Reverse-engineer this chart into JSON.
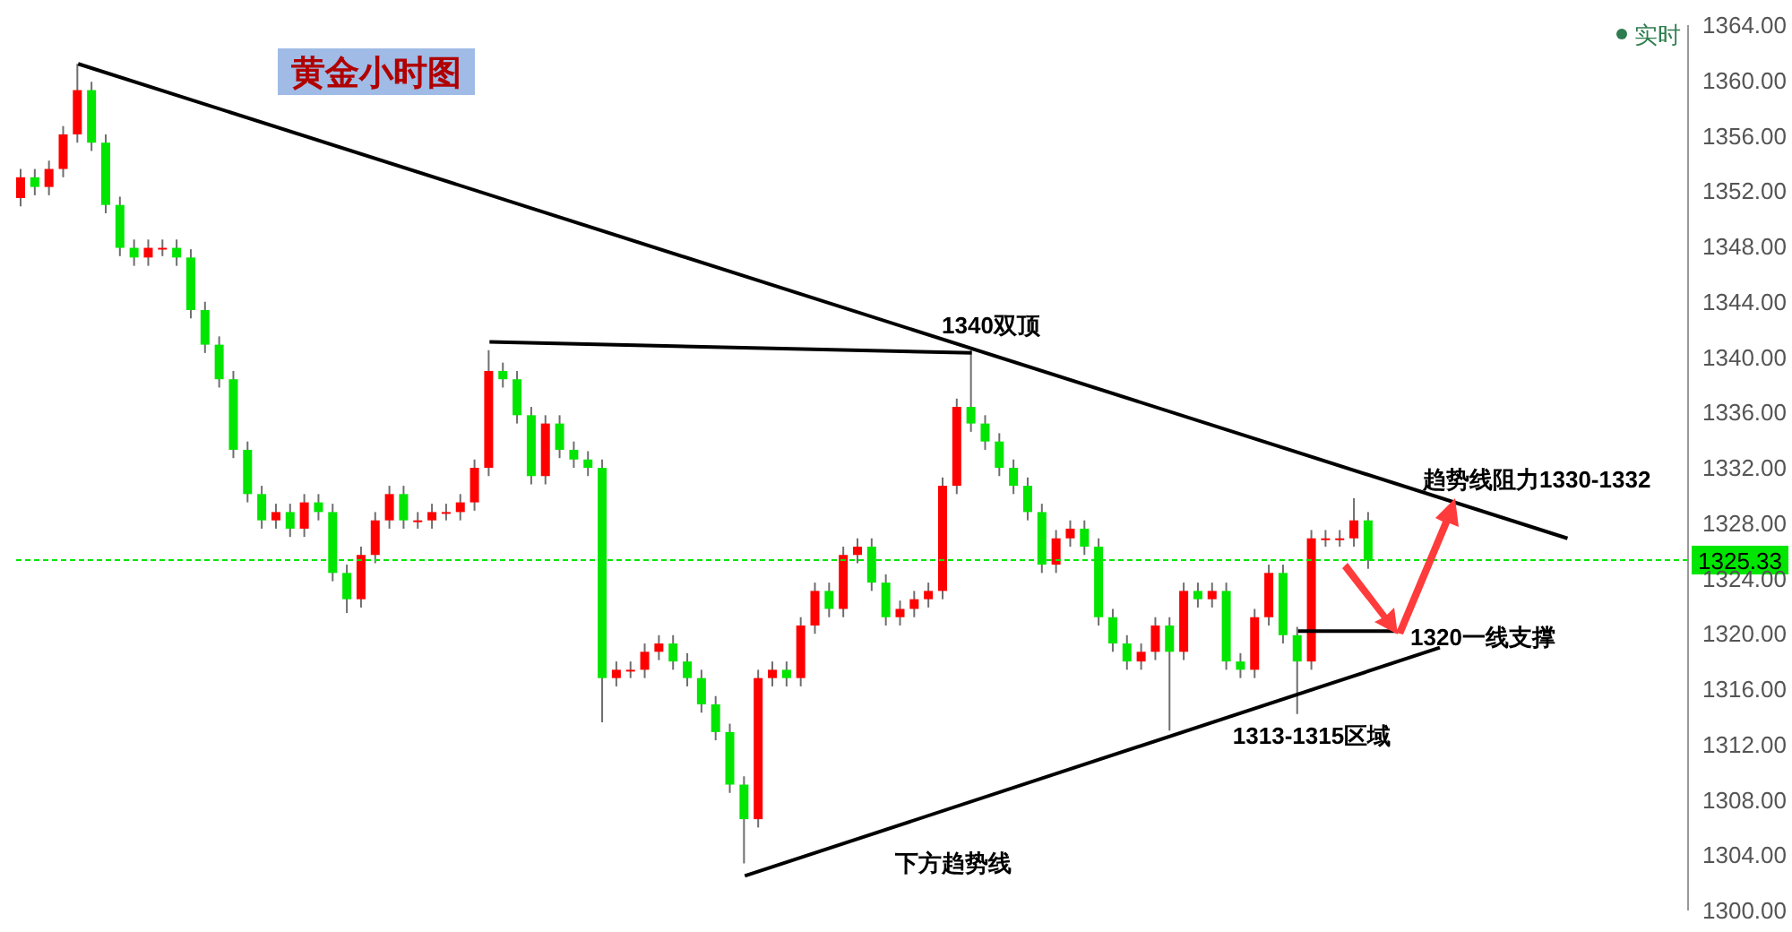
{
  "chart_data": {
    "type": "candlestick",
    "title": "黄金小时图",
    "categories": [
      null,
      null,
      null,
      null,
      null,
      null,
      null,
      null,
      null,
      null,
      null,
      null,
      null,
      null,
      null,
      null,
      null,
      null,
      null,
      null,
      null,
      null,
      null,
      null,
      null,
      null,
      null,
      null,
      null,
      null,
      null,
      null,
      null,
      null,
      null,
      null,
      null,
      null,
      null,
      null,
      null,
      null,
      null,
      null,
      null,
      null,
      null,
      null,
      null,
      null,
      null,
      null,
      null,
      null,
      null,
      null,
      null,
      null,
      null,
      null,
      null,
      null,
      null,
      null,
      null,
      null,
      null,
      null,
      null,
      null,
      null,
      null,
      null,
      null,
      null,
      null,
      null,
      null,
      null,
      null,
      null,
      null,
      null,
      null,
      null,
      null,
      null,
      null,
      null,
      null,
      null,
      null,
      null,
      null,
      null,
      null,
      null,
      null,
      null,
      null,
      null,
      null,
      null,
      null,
      null,
      null,
      null,
      null,
      null,
      null,
      null,
      null,
      null,
      null,
      null,
      null,
      null,
      null
    ],
    "ohlc": [
      [
        1351.5,
        1353.6,
        1350.9,
        1353.0
      ],
      [
        1353.0,
        1353.6,
        1351.7,
        1352.3
      ],
      [
        1352.3,
        1354.2,
        1351.7,
        1353.6
      ],
      [
        1353.6,
        1356.7,
        1353.0,
        1356.1
      ],
      [
        1356.1,
        1361.2,
        1355.5,
        1359.3
      ],
      [
        1359.3,
        1359.9,
        1354.9,
        1355.5
      ],
      [
        1355.5,
        1356.1,
        1350.4,
        1351.0
      ],
      [
        1351.0,
        1351.6,
        1347.3,
        1347.9
      ],
      [
        1347.9,
        1348.5,
        1346.6,
        1347.2
      ],
      [
        1347.2,
        1348.5,
        1346.6,
        1347.9
      ],
      [
        1347.9,
        1348.5,
        1347.3,
        1347.9
      ],
      [
        1347.9,
        1348.5,
        1346.6,
        1347.2
      ],
      [
        1347.2,
        1347.8,
        1342.8,
        1343.4
      ],
      [
        1343.4,
        1344.0,
        1340.3,
        1340.9
      ],
      [
        1340.9,
        1341.5,
        1337.8,
        1338.4
      ],
      [
        1338.4,
        1339.0,
        1332.7,
        1333.3
      ],
      [
        1333.3,
        1333.9,
        1329.5,
        1330.1
      ],
      [
        1330.1,
        1330.7,
        1327.6,
        1328.2
      ],
      [
        1328.2,
        1329.4,
        1327.6,
        1328.8
      ],
      [
        1328.8,
        1329.4,
        1327.0,
        1327.6
      ],
      [
        1327.6,
        1330.1,
        1327.0,
        1329.5
      ],
      [
        1329.5,
        1330.1,
        1328.2,
        1328.8
      ],
      [
        1328.8,
        1329.4,
        1323.8,
        1324.4
      ],
      [
        1324.4,
        1325.0,
        1321.5,
        1322.5
      ],
      [
        1322.5,
        1326.3,
        1321.9,
        1325.7
      ],
      [
        1325.7,
        1328.8,
        1325.1,
        1328.2
      ],
      [
        1328.2,
        1330.7,
        1327.6,
        1330.1
      ],
      [
        1330.1,
        1330.7,
        1327.6,
        1328.2
      ],
      [
        1328.2,
        1328.8,
        1327.6,
        1328.2
      ],
      [
        1328.2,
        1329.4,
        1327.6,
        1328.8
      ],
      [
        1328.8,
        1329.4,
        1328.2,
        1328.8
      ],
      [
        1328.8,
        1330.1,
        1328.2,
        1329.5
      ],
      [
        1329.5,
        1332.6,
        1328.9,
        1332.0
      ],
      [
        1332.0,
        1340.5,
        1331.4,
        1339.0
      ],
      [
        1339.0,
        1339.6,
        1337.8,
        1338.4
      ],
      [
        1338.4,
        1339.0,
        1335.2,
        1335.8
      ],
      [
        1335.8,
        1336.4,
        1330.8,
        1331.4
      ],
      [
        1331.4,
        1335.8,
        1330.8,
        1335.2
      ],
      [
        1335.2,
        1335.8,
        1332.7,
        1333.3
      ],
      [
        1333.3,
        1333.9,
        1332.0,
        1332.6
      ],
      [
        1332.6,
        1333.2,
        1331.4,
        1332.0
      ],
      [
        1332.0,
        1332.6,
        1313.6,
        1316.8
      ],
      [
        1316.8,
        1318.0,
        1316.2,
        1317.4
      ],
      [
        1317.4,
        1318.0,
        1316.8,
        1317.4
      ],
      [
        1317.4,
        1319.3,
        1316.8,
        1318.7
      ],
      [
        1318.7,
        1319.9,
        1318.1,
        1319.3
      ],
      [
        1319.3,
        1319.9,
        1317.4,
        1318.0
      ],
      [
        1318.0,
        1318.6,
        1316.2,
        1316.8
      ],
      [
        1316.8,
        1317.4,
        1314.3,
        1314.9
      ],
      [
        1314.9,
        1315.5,
        1312.3,
        1312.9
      ],
      [
        1312.9,
        1313.5,
        1308.5,
        1309.1
      ],
      [
        1309.1,
        1309.7,
        1303.4,
        1306.6
      ],
      [
        1306.6,
        1317.4,
        1306.0,
        1316.8
      ],
      [
        1316.8,
        1318.0,
        1316.2,
        1317.4
      ],
      [
        1317.4,
        1318.0,
        1316.2,
        1316.8
      ],
      [
        1316.8,
        1321.2,
        1316.2,
        1320.6
      ],
      [
        1320.6,
        1323.7,
        1320.0,
        1323.1
      ],
      [
        1323.1,
        1323.7,
        1321.2,
        1321.8
      ],
      [
        1321.8,
        1326.3,
        1321.2,
        1325.7
      ],
      [
        1325.7,
        1326.9,
        1325.1,
        1326.3
      ],
      [
        1326.3,
        1326.9,
        1323.1,
        1323.7
      ],
      [
        1323.7,
        1324.3,
        1320.6,
        1321.2
      ],
      [
        1321.2,
        1322.4,
        1320.6,
        1321.8
      ],
      [
        1321.8,
        1323.1,
        1321.2,
        1322.5
      ],
      [
        1322.5,
        1323.7,
        1321.9,
        1323.1
      ],
      [
        1323.1,
        1331.3,
        1322.5,
        1330.7
      ],
      [
        1330.7,
        1337.0,
        1330.1,
        1336.4
      ],
      [
        1336.4,
        1340.5,
        1334.6,
        1335.2
      ],
      [
        1335.2,
        1335.8,
        1333.3,
        1333.9
      ],
      [
        1333.9,
        1334.5,
        1331.4,
        1332.0
      ],
      [
        1332.0,
        1332.6,
        1330.1,
        1330.7
      ],
      [
        1330.7,
        1331.3,
        1328.2,
        1328.8
      ],
      [
        1328.8,
        1329.4,
        1324.4,
        1325.0
      ],
      [
        1325.0,
        1327.5,
        1324.4,
        1326.9
      ],
      [
        1326.9,
        1328.2,
        1326.3,
        1327.6
      ],
      [
        1327.6,
        1328.2,
        1325.7,
        1326.3
      ],
      [
        1326.3,
        1326.9,
        1320.6,
        1321.2
      ],
      [
        1321.2,
        1321.8,
        1318.7,
        1319.3
      ],
      [
        1319.3,
        1319.9,
        1317.4,
        1318.0
      ],
      [
        1318.0,
        1319.3,
        1317.4,
        1318.7
      ],
      [
        1318.7,
        1321.2,
        1318.1,
        1320.6
      ],
      [
        1320.6,
        1321.2,
        1313.0,
        1318.7
      ],
      [
        1318.7,
        1323.7,
        1318.1,
        1323.1
      ],
      [
        1323.1,
        1323.7,
        1321.9,
        1322.5
      ],
      [
        1322.5,
        1323.7,
        1321.9,
        1323.1
      ],
      [
        1323.1,
        1323.7,
        1317.4,
        1318.0
      ],
      [
        1318.0,
        1318.6,
        1316.8,
        1317.4
      ],
      [
        1317.4,
        1321.8,
        1316.8,
        1321.2
      ],
      [
        1321.2,
        1325.0,
        1320.6,
        1324.4
      ],
      [
        1324.4,
        1325.0,
        1319.3,
        1319.9
      ],
      [
        1319.9,
        1320.5,
        1314.2,
        1318.0
      ],
      [
        1318.0,
        1327.5,
        1317.4,
        1326.9
      ],
      [
        1326.9,
        1327.5,
        1326.3,
        1326.9
      ],
      [
        1326.9,
        1327.5,
        1326.3,
        1326.9
      ],
      [
        1326.9,
        1329.8,
        1326.3,
        1328.2
      ],
      [
        1328.2,
        1328.8,
        1324.7,
        1325.3
      ],
      null,
      null,
      null,
      null,
      null,
      null,
      null,
      null,
      null,
      null,
      null,
      null,
      null,
      null,
      null,
      null,
      null,
      null,
      null,
      null,
      null,
      null
    ],
    "colors": [
      "#ff0000",
      "#00e600",
      "#ff0000",
      "#ff0000",
      "#ff0000",
      "#00e600",
      "#00e600",
      "#00e600",
      "#00e600",
      "#ff0000",
      "#ff0000",
      "#00e600",
      "#00e600",
      "#00e600",
      "#00e600",
      "#00e600",
      "#00e600",
      "#00e600",
      "#ff0000",
      "#00e600",
      "#ff0000",
      "#00e600",
      "#00e600",
      "#00e600",
      "#ff0000",
      "#ff0000",
      "#ff0000",
      "#00e600",
      "#ff0000",
      "#ff0000",
      "#ff0000",
      "#ff0000",
      "#ff0000",
      "#ff0000",
      "#00e600",
      "#00e600",
      "#00e600",
      "#ff0000",
      "#00e600",
      "#00e600",
      "#00e600",
      "#00e600",
      "#ff0000",
      "#ff0000",
      "#ff0000",
      "#ff0000",
      "#00e600",
      "#00e600",
      "#00e600",
      "#00e600",
      "#00e600",
      "#00e600",
      "#ff0000",
      "#ff0000",
      "#00e600",
      "#ff0000",
      "#ff0000",
      "#00e600",
      "#ff0000",
      "#ff0000",
      "#00e600",
      "#00e600",
      "#ff0000",
      "#ff0000",
      "#ff0000",
      "#ff0000",
      "#ff0000",
      "#00e600",
      "#00e600",
      "#00e600",
      "#00e600",
      "#00e600",
      "#00e600",
      "#ff0000",
      "#ff0000",
      "#00e600",
      "#00e600",
      "#00e600",
      "#00e600",
      "#ff0000",
      "#ff0000",
      "#00e600",
      "#ff0000",
      "#00e600",
      "#ff0000",
      "#00e600",
      "#00e600",
      "#ff0000",
      "#ff0000",
      "#00e600",
      "#00e600",
      "#ff0000",
      "#ff0000",
      "#ff0000",
      "#ff0000",
      "#00e600",
      null,
      null,
      null,
      null,
      null,
      null,
      null,
      null,
      null,
      null,
      null,
      null,
      null,
      null,
      null,
      null,
      null,
      null,
      null,
      null,
      null,
      null
    ],
    "series": [
      {
        "type": "line",
        "color": "#000000",
        "values": [
          null,
          null,
          null,
          null,
          1361.2,
          null,
          null,
          null,
          null,
          null,
          null,
          null,
          null,
          null,
          null,
          null,
          null,
          null,
          null,
          null,
          null,
          null,
          null,
          null,
          null,
          null,
          null,
          null,
          null,
          null,
          null,
          null,
          null,
          null,
          null,
          null,
          null,
          null,
          null,
          null,
          null,
          null,
          null,
          null,
          null,
          null,
          null,
          null,
          null,
          null,
          null,
          null,
          null,
          null,
          null,
          null,
          null,
          null,
          null,
          null,
          null,
          null,
          null,
          null,
          null,
          null,
          null,
          null,
          null,
          null,
          null,
          null,
          null,
          null,
          null,
          null,
          null,
          null,
          null,
          null,
          null,
          null,
          null,
          null,
          null,
          null,
          null,
          null,
          null,
          null,
          null,
          null,
          null,
          null,
          null,
          null,
          null,
          null,
          null,
          null,
          null,
          null,
          null,
          null,
          null,
          null,
          null,
          null,
          null,
          1326.9,
          null,
          null,
          null,
          null,
          null,
          null,
          null,
          null
        ]
      },
      {
        "type": "line",
        "color": "#000000",
        "values": [
          null,
          null,
          null,
          null,
          null,
          null,
          null,
          null,
          null,
          null,
          null,
          null,
          null,
          null,
          null,
          null,
          null,
          null,
          null,
          null,
          null,
          null,
          null,
          null,
          null,
          null,
          null,
          null,
          null,
          null,
          null,
          null,
          null,
          1341.1,
          null,
          null,
          null,
          null,
          null,
          null,
          null,
          null,
          null,
          null,
          null,
          null,
          null,
          null,
          null,
          null,
          null,
          null,
          null,
          null,
          null,
          null,
          null,
          null,
          null,
          null,
          null,
          null,
          null,
          null,
          null,
          null,
          null,
          1340.3,
          null,
          null,
          null,
          null,
          null,
          null,
          null,
          null,
          null,
          null,
          null,
          null,
          null,
          null,
          null,
          null,
          null,
          null,
          null,
          null,
          null,
          null,
          null,
          null,
          null,
          null,
          null,
          null,
          null,
          null,
          null,
          null,
          null,
          null,
          null,
          null,
          null,
          null,
          null,
          null,
          null,
          null,
          null,
          null,
          null,
          null,
          null,
          null,
          null,
          null
        ]
      },
      {
        "type": "line",
        "color": "#000000",
        "values": [
          null,
          null,
          null,
          null,
          null,
          null,
          null,
          null,
          null,
          null,
          null,
          null,
          null,
          null,
          null,
          null,
          null,
          null,
          null,
          null,
          null,
          null,
          null,
          null,
          null,
          null,
          null,
          null,
          null,
          null,
          null,
          null,
          null,
          null,
          null,
          null,
          null,
          null,
          null,
          null,
          null,
          null,
          null,
          null,
          null,
          null,
          null,
          null,
          null,
          null,
          null,
          1302.5,
          null,
          null,
          null,
          null,
          null,
          null,
          null,
          null,
          null,
          null,
          null,
          null,
          null,
          null,
          null,
          null,
          null,
          null,
          null,
          null,
          null,
          null,
          null,
          null,
          null,
          null,
          null,
          null,
          null,
          null,
          null,
          null,
          null,
          null,
          null,
          null,
          null,
          null,
          null,
          null,
          null,
          null,
          null,
          null,
          null,
          null,
          null,
          null,
          1319.0,
          null,
          null,
          null,
          null,
          null,
          null,
          null,
          null,
          null,
          null,
          null,
          null,
          null,
          null,
          null,
          null,
          null
        ]
      },
      {
        "type": "line",
        "color": "#000000",
        "values": [
          null,
          null,
          null,
          null,
          null,
          null,
          null,
          null,
          null,
          null,
          null,
          null,
          null,
          null,
          null,
          null,
          null,
          null,
          null,
          null,
          null,
          null,
          null,
          null,
          null,
          null,
          null,
          null,
          null,
          null,
          null,
          null,
          null,
          null,
          null,
          null,
          null,
          null,
          null,
          null,
          null,
          null,
          null,
          null,
          null,
          null,
          null,
          null,
          null,
          null,
          null,
          null,
          null,
          null,
          null,
          null,
          null,
          null,
          null,
          null,
          null,
          null,
          null,
          null,
          null,
          null,
          null,
          null,
          null,
          null,
          null,
          null,
          null,
          null,
          null,
          null,
          null,
          null,
          null,
          null,
          null,
          null,
          null,
          null,
          null,
          null,
          null,
          null,
          null,
          null,
          1320.2,
          null,
          null,
          null,
          null,
          null,
          null,
          1320.2,
          null,
          null,
          null,
          null,
          null,
          null,
          null,
          null,
          null,
          null,
          null,
          null,
          null,
          null,
          null,
          null,
          null,
          null,
          null,
          null
        ]
      }
    ],
    "ylim": [
      1300,
      1364
    ],
    "yticks": [
      {
        "value": 1300,
        "label": "1300.00"
      },
      {
        "value": 1304,
        "label": "1304.00"
      },
      {
        "value": 1308,
        "label": "1308.00"
      },
      {
        "value": 1312,
        "label": "1312.00"
      },
      {
        "value": 1316,
        "label": "1316.00"
      },
      {
        "value": 1320,
        "label": "1320.00"
      },
      {
        "value": 1324,
        "label": "1324.00"
      },
      {
        "value": 1328,
        "label": "1328.00"
      },
      {
        "value": 1332,
        "label": "1332.00"
      },
      {
        "value": 1336,
        "label": "1336.00"
      },
      {
        "value": 1340,
        "label": "1340.00"
      },
      {
        "value": 1344,
        "label": "1344.00"
      },
      {
        "value": 1348,
        "label": "1348.00"
      },
      {
        "value": 1352,
        "label": "1352.00"
      },
      {
        "value": 1356,
        "label": "1356.00"
      },
      {
        "value": 1360,
        "label": "1360.00"
      },
      {
        "value": 1364,
        "label": "1364.00"
      }
    ],
    "ref_lines": [
      {
        "axis": "y",
        "value": 1325.33,
        "label": "1325.33",
        "color": "#00e600",
        "line_style": "dashed"
      }
    ],
    "annotations": [
      "1340双顶",
      "趋势线阻力1330-1332",
      "1320一线支撑",
      "1313-1315区域",
      "下方趋势线",
      "实时"
    ],
    "tick_labels": "y"
  }
}
